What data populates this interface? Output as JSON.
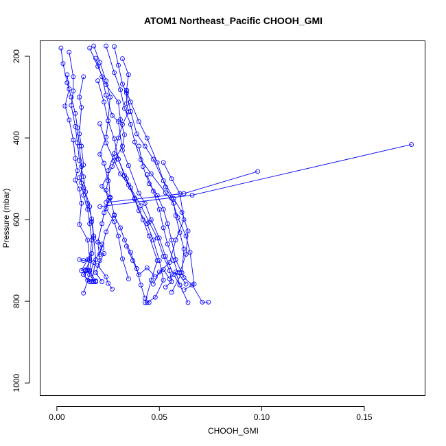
{
  "chart_data": {
    "type": "line",
    "title": "ATOM1 Northeast_Pacific CHOOH_GMI",
    "xlabel": "CHOOH_GMI",
    "ylabel": "Pressure (mbar)",
    "xlim": [
      -0.008,
      0.1795
    ],
    "ylim": [
      1030,
      163
    ],
    "y_reversed": true,
    "x_ticks": [
      "0.00",
      "0.05",
      "0.10",
      "0.15"
    ],
    "x_tick_values": [
      0,
      0.05,
      0.1,
      0.15
    ],
    "y_ticks": [
      "200",
      "400",
      "600",
      "800",
      "1000"
    ],
    "y_tick_values": [
      200,
      400,
      600,
      800,
      1000
    ],
    "grid": false,
    "legend": "none",
    "color": "#0000ff",
    "marker": "open-circle",
    "series": [
      {
        "points": [
          [
            0.002,
            180
          ],
          [
            0.003,
            218
          ],
          [
            0.005,
            265
          ],
          [
            0.007,
            300
          ],
          [
            0.009,
            340
          ],
          [
            0.01,
            375
          ],
          [
            0.011,
            420
          ],
          [
            0.012,
            470
          ],
          [
            0.012,
            510
          ],
          [
            0.013,
            540
          ],
          [
            0.015,
            575
          ],
          [
            0.016,
            610
          ],
          [
            0.017,
            650
          ],
          [
            0.016,
            700
          ],
          [
            0.014,
            725
          ],
          [
            0.013,
            735
          ],
          [
            0.016,
            752
          ]
        ]
      },
      {
        "points": [
          [
            0.006,
            190
          ],
          [
            0.008,
            250
          ],
          [
            0.008,
            285
          ],
          [
            0.007,
            320
          ],
          [
            0.009,
            372
          ],
          [
            0.01,
            412
          ],
          [
            0.011,
            455
          ],
          [
            0.013,
            495
          ],
          [
            0.014,
            532
          ],
          [
            0.016,
            568
          ],
          [
            0.017,
            605
          ],
          [
            0.018,
            645
          ],
          [
            0.019,
            698
          ],
          [
            0.017,
            752
          ]
        ]
      },
      {
        "points": [
          [
            0.005,
            245
          ],
          [
            0.006,
            280
          ],
          [
            0.004,
            322
          ],
          [
            0.006,
            356
          ],
          [
            0.008,
            405
          ],
          [
            0.009,
            450
          ],
          [
            0.01,
            480
          ],
          [
            0.009,
            503
          ],
          [
            0.011,
            525
          ],
          [
            0.012,
            560
          ],
          [
            0.011,
            612
          ],
          [
            0.015,
            650
          ],
          [
            0.016,
            695
          ],
          [
            0.015,
            723
          ],
          [
            0.018,
            752
          ]
        ]
      },
      {
        "points": [
          [
            0.013,
            250
          ],
          [
            0.011,
            300
          ],
          [
            0.012,
            325
          ],
          [
            0.011,
            390
          ],
          [
            0.012,
            420
          ],
          [
            0.013,
            466
          ],
          [
            0.011,
            497
          ],
          [
            0.013,
            522
          ],
          [
            0.015,
            560
          ],
          [
            0.017,
            598
          ],
          [
            0.018,
            640
          ],
          [
            0.017,
            683
          ],
          [
            0.016,
            725
          ],
          [
            0.019,
            752
          ]
        ]
      },
      {
        "points": [
          [
            0.018,
            175
          ],
          [
            0.021,
            215
          ],
          [
            0.024,
            260
          ],
          [
            0.026,
            300
          ],
          [
            0.025,
            358
          ],
          [
            0.024,
            398
          ],
          [
            0.021,
            440
          ],
          [
            0.023,
            462
          ],
          [
            0.025,
            505
          ],
          [
            0.024,
            528
          ],
          [
            0.025,
            553
          ],
          [
            0.023,
            583
          ],
          [
            0.022,
            610
          ],
          [
            0.02,
            655
          ],
          [
            0.021,
            700
          ],
          [
            0.019,
            730
          ],
          [
            0.022,
            752
          ]
        ]
      },
      {
        "points": [
          [
            0.016,
            180
          ],
          [
            0.02,
            225
          ],
          [
            0.024,
            270
          ],
          [
            0.03,
            312
          ],
          [
            0.031,
            355
          ],
          [
            0.033,
            392
          ],
          [
            0.032,
            420
          ],
          [
            0.029,
            446
          ],
          [
            0.027,
            470
          ],
          [
            0.022,
            518
          ],
          [
            0.026,
            545
          ],
          [
            0.028,
            588
          ],
          [
            0.024,
            630
          ],
          [
            0.022,
            670
          ],
          [
            0.018,
            705
          ],
          [
            0.016,
            735
          ],
          [
            0.013,
            780
          ]
        ]
      },
      {
        "points": [
          [
            0.032,
            206
          ],
          [
            0.035,
            245
          ],
          [
            0.034,
            283
          ],
          [
            0.034,
            316
          ],
          [
            0.035,
            336
          ],
          [
            0.032,
            367
          ],
          [
            0.03,
            400
          ],
          [
            0.028,
            438
          ],
          [
            0.025,
            480
          ],
          [
            0.026,
            547
          ],
          [
            0.024,
            573
          ],
          [
            0.028,
            605
          ],
          [
            0.03,
            640
          ],
          [
            0.032,
            696
          ],
          [
            0.035,
            745
          ]
        ]
      },
      {
        "points": [
          [
            0.024,
            175
          ],
          [
            0.028,
            240
          ],
          [
            0.031,
            282
          ],
          [
            0.033,
            328
          ],
          [
            0.036,
            367
          ],
          [
            0.038,
            410
          ],
          [
            0.041,
            453
          ],
          [
            0.046,
            488
          ],
          [
            0.053,
            534
          ],
          [
            0.057,
            560
          ],
          [
            0.058,
            590
          ],
          [
            0.06,
            632
          ],
          [
            0.062,
            672
          ],
          [
            0.061,
            730
          ],
          [
            0.056,
            778
          ]
        ]
      },
      {
        "points": [
          [
            0.019,
            205
          ],
          [
            0.022,
            250
          ],
          [
            0.024,
            295
          ],
          [
            0.027,
            345
          ],
          [
            0.03,
            360
          ],
          [
            0.032,
            430
          ],
          [
            0.035,
            468
          ],
          [
            0.04,
            535
          ],
          [
            0.043,
            560
          ],
          [
            0.046,
            600
          ],
          [
            0.05,
            645
          ],
          [
            0.053,
            690
          ],
          [
            0.057,
            735
          ],
          [
            0.06,
            760
          ],
          [
            0.064,
            803
          ]
        ]
      },
      {
        "points": [
          [
            0.02,
            260
          ],
          [
            0.023,
            312
          ],
          [
            0.025,
            358
          ],
          [
            0.028,
            402
          ],
          [
            0.03,
            452
          ],
          [
            0.033,
            492
          ],
          [
            0.035,
            515
          ],
          [
            0.038,
            550
          ],
          [
            0.04,
            578
          ],
          [
            0.044,
            610
          ],
          [
            0.047,
            650
          ],
          [
            0.05,
            700
          ],
          [
            0.052,
            748
          ],
          [
            0.048,
            790
          ],
          [
            0.044,
            803
          ]
        ]
      },
      {
        "points": [
          [
            0.04,
            420
          ],
          [
            0.042,
            470
          ],
          [
            0.045,
            512
          ],
          [
            0.049,
            540
          ],
          [
            0.052,
            575
          ],
          [
            0.054,
            610
          ],
          [
            0.056,
            650
          ],
          [
            0.058,
            698
          ],
          [
            0.062,
            742
          ],
          [
            0.066,
            760
          ],
          [
            0.071,
            802
          ],
          [
            0.074,
            802
          ]
        ]
      },
      {
        "points": [
          [
            0.021,
            365
          ],
          [
            0.024,
            412
          ],
          [
            0.028,
            456
          ],
          [
            0.031,
            488
          ],
          [
            0.036,
            522
          ],
          [
            0.041,
            566
          ],
          [
            0.045,
            606
          ],
          [
            0.049,
            645
          ],
          [
            0.052,
            690
          ],
          [
            0.055,
            725
          ],
          [
            0.056,
            752
          ],
          [
            0.053,
            765
          ]
        ]
      },
      {
        "points": [
          [
            0.028,
            176
          ],
          [
            0.03,
            222
          ],
          [
            0.032,
            268
          ],
          [
            0.034,
            290
          ],
          [
            0.036,
            335
          ],
          [
            0.039,
            390
          ],
          [
            0.043,
            420
          ],
          [
            0.047,
            452
          ],
          [
            0.052,
            505
          ],
          [
            0.057,
            548
          ],
          [
            0.061,
            582
          ],
          [
            0.064,
            628
          ],
          [
            0.063,
            685
          ],
          [
            0.06,
            730
          ]
        ]
      },
      {
        "points": [
          [
            0.021,
            568
          ],
          [
            0.066,
            540
          ],
          [
            0.173,
            416
          ]
        ]
      },
      {
        "points": [
          [
            0.024,
            558
          ],
          [
            0.062,
            536
          ],
          [
            0.098,
            482
          ]
        ]
      },
      {
        "points": [
          [
            0.034,
            285
          ],
          [
            0.036,
            312
          ],
          [
            0.04,
            360
          ],
          [
            0.044,
            400
          ],
          [
            0.049,
            460
          ],
          [
            0.053,
            520
          ],
          [
            0.056,
            548
          ],
          [
            0.059,
            595
          ],
          [
            0.063,
            640
          ],
          [
            0.065,
            680
          ],
          [
            0.067,
            758
          ],
          [
            0.062,
            772
          ]
        ]
      },
      {
        "points": [
          [
            0.03,
            452
          ],
          [
            0.034,
            500
          ],
          [
            0.038,
            548
          ],
          [
            0.042,
            600
          ],
          [
            0.045,
            640
          ],
          [
            0.049,
            700
          ],
          [
            0.046,
            748
          ],
          [
            0.043,
            803
          ],
          [
            0.045,
            803
          ]
        ]
      },
      {
        "points": [
          [
            0.052,
            460
          ],
          [
            0.056,
            500
          ],
          [
            0.06,
            536
          ],
          [
            0.062,
            600
          ],
          [
            0.058,
            650
          ],
          [
            0.055,
            705
          ],
          [
            0.05,
            728
          ],
          [
            0.047,
            758
          ]
        ]
      },
      {
        "points": [
          [
            0.028,
            590
          ],
          [
            0.031,
            620
          ],
          [
            0.033,
            650
          ],
          [
            0.036,
            680
          ],
          [
            0.039,
            720
          ],
          [
            0.041,
            760
          ],
          [
            0.043,
            792
          ]
        ]
      },
      {
        "points": [
          [
            0.044,
            490
          ],
          [
            0.047,
            530
          ],
          [
            0.05,
            575
          ],
          [
            0.052,
            620
          ],
          [
            0.054,
            660
          ],
          [
            0.057,
            700
          ],
          [
            0.059,
            730
          ],
          [
            0.063,
            758
          ]
        ]
      },
      {
        "points": [
          [
            0.034,
            665
          ],
          [
            0.037,
            700
          ],
          [
            0.04,
            735
          ],
          [
            0.044,
            718
          ],
          [
            0.048,
            740
          ],
          [
            0.052,
            722
          ],
          [
            0.055,
            745
          ],
          [
            0.058,
            728
          ],
          [
            0.06,
            760
          ]
        ]
      },
      {
        "points": [
          [
            0.011,
            698
          ],
          [
            0.013,
            700
          ],
          [
            0.015,
            698
          ],
          [
            0.012,
            725
          ],
          [
            0.014,
            723
          ],
          [
            0.016,
            726
          ],
          [
            0.013,
            735
          ],
          [
            0.015,
            748
          ],
          [
            0.017,
            752
          ],
          [
            0.019,
            750
          ]
        ]
      },
      {
        "points": [
          [
            0.02,
            655
          ],
          [
            0.022,
            660
          ],
          [
            0.021,
            685
          ],
          [
            0.023,
            683
          ],
          [
            0.02,
            712
          ],
          [
            0.024,
            740
          ],
          [
            0.025,
            756
          ],
          [
            0.027,
            770
          ]
        ]
      }
    ]
  }
}
